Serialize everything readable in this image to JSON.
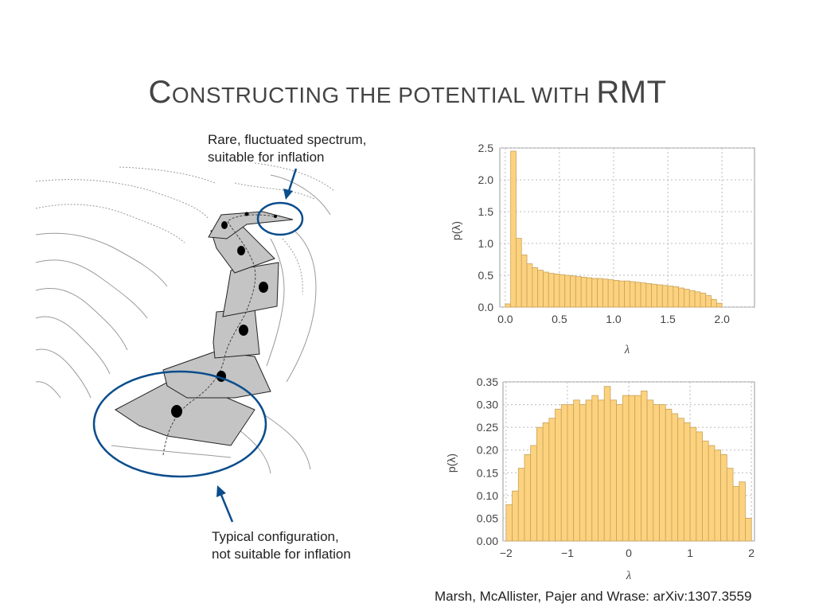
{
  "slide": {
    "title_first_cap": "C",
    "title_small_caps": "ONSTRUCTING THE POTENTIAL WITH ",
    "title_last": "RMT",
    "annotation_top": [
      "Rare, fluctuated spectrum,",
      "suitable for inflation"
    ],
    "annotation_bottom": [
      "Typical configuration,",
      "not suitable for inflation"
    ],
    "citation": "Marsh, McAllister, Pajer and Wrase: arXiv:1307.3559"
  },
  "colors": {
    "bar_fill": "#fcd27f",
    "bar_stroke": "#c8a25a",
    "ellipse": "#0a4d8c",
    "arrow": "#0a4d8c",
    "patch_fill": "#c4c4c4",
    "contour": "#9a9a9a"
  },
  "chart_data": [
    {
      "type": "bar",
      "title": "",
      "xlabel": "λ",
      "ylabel": "p(λ)",
      "xlim": [
        -0.05,
        2.3
      ],
      "ylim": [
        0,
        2.5
      ],
      "bin_width": 0.05,
      "x_start": 0.0,
      "xticks": [
        "0.0",
        "0.5",
        "1.0",
        "1.5",
        "2.0"
      ],
      "xtick_values": [
        0.0,
        0.5,
        1.0,
        1.5,
        2.0
      ],
      "yticks": [
        "0.0",
        "0.5",
        "1.0",
        "1.5",
        "2.0",
        "2.5"
      ],
      "ytick_values": [
        0.0,
        0.5,
        1.0,
        1.5,
        2.0,
        2.5
      ],
      "values": [
        0.05,
        2.45,
        1.08,
        0.82,
        0.68,
        0.62,
        0.58,
        0.55,
        0.53,
        0.52,
        0.51,
        0.5,
        0.49,
        0.48,
        0.47,
        0.46,
        0.45,
        0.45,
        0.44,
        0.43,
        0.42,
        0.41,
        0.41,
        0.4,
        0.39,
        0.38,
        0.37,
        0.36,
        0.35,
        0.34,
        0.33,
        0.32,
        0.3,
        0.28,
        0.26,
        0.24,
        0.22,
        0.18,
        0.12,
        0.06
      ]
    },
    {
      "type": "bar",
      "title": "",
      "xlabel": "λ",
      "ylabel": "p(λ)",
      "xlim": [
        -2.05,
        2.05
      ],
      "ylim": [
        0,
        0.35
      ],
      "bin_width": 0.1,
      "x_start": -2.0,
      "xticks": [
        "−2",
        "−1",
        "0",
        "1",
        "2"
      ],
      "xtick_values": [
        -2,
        -1,
        0,
        1,
        2
      ],
      "yticks": [
        "0.00",
        "0.05",
        "0.10",
        "0.15",
        "0.20",
        "0.25",
        "0.30",
        "0.35"
      ],
      "ytick_values": [
        0,
        0.05,
        0.1,
        0.15,
        0.2,
        0.25,
        0.3,
        0.35
      ],
      "values": [
        0.08,
        0.11,
        0.16,
        0.19,
        0.21,
        0.25,
        0.26,
        0.27,
        0.29,
        0.3,
        0.3,
        0.31,
        0.3,
        0.31,
        0.32,
        0.31,
        0.34,
        0.31,
        0.3,
        0.32,
        0.32,
        0.32,
        0.33,
        0.31,
        0.3,
        0.3,
        0.29,
        0.28,
        0.27,
        0.26,
        0.25,
        0.24,
        0.22,
        0.21,
        0.2,
        0.19,
        0.16,
        0.12,
        0.13,
        0.05
      ]
    }
  ]
}
